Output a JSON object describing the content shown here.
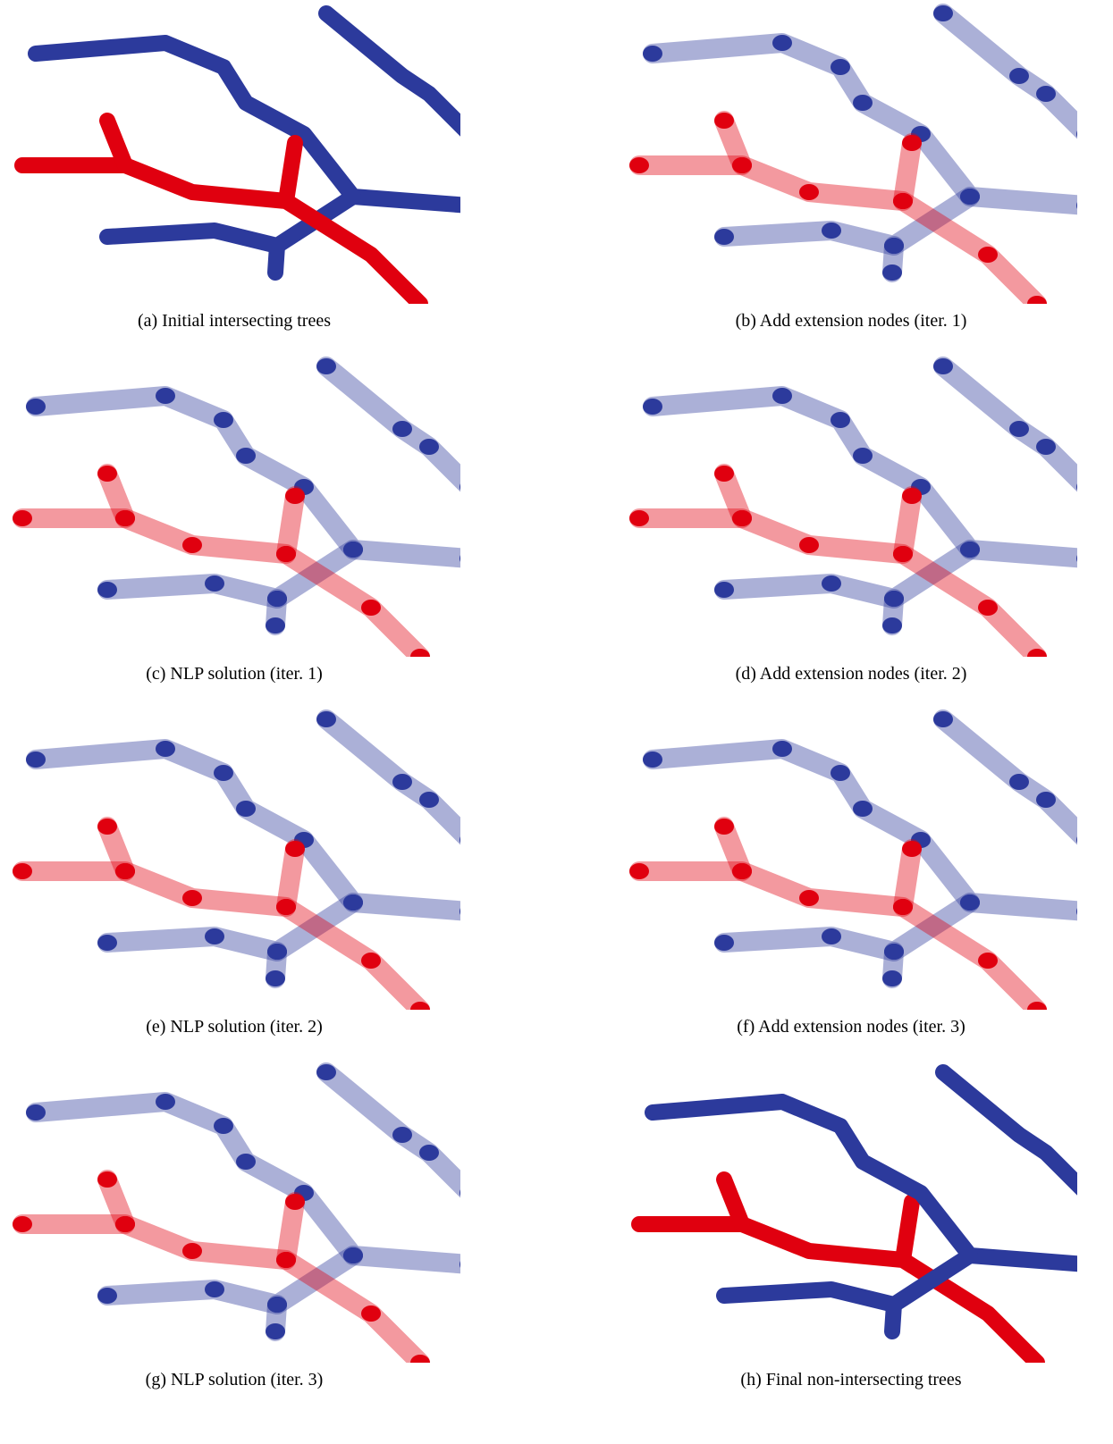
{
  "panels": [
    {
      "caption": "(a) Initial intersecting trees"
    },
    {
      "caption": "(b) Add extension nodes (iter. 1)"
    },
    {
      "caption": "(c) NLP solution (iter. 1)"
    },
    {
      "caption": "(d) Add extension nodes (iter. 2)"
    },
    {
      "caption": "(e) NLP solution (iter. 2)"
    },
    {
      "caption": "(f) Add extension nodes (iter. 3)"
    },
    {
      "caption": "(g) NLP solution (iter. 3)"
    },
    {
      "caption": "(h) Final non-intersecting trees"
    }
  ]
}
